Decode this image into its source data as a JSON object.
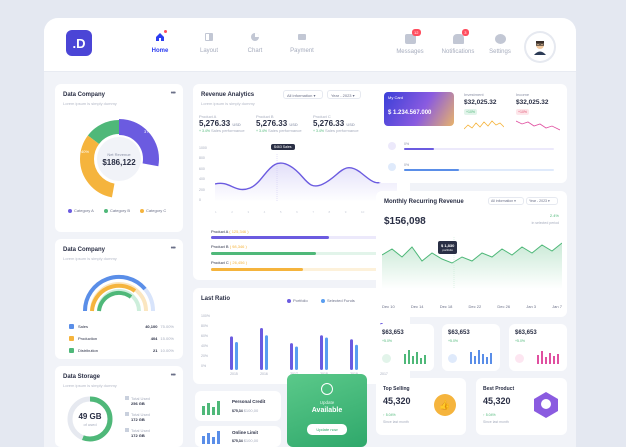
{
  "app": {
    "logo": ".D"
  },
  "nav": {
    "items": [
      {
        "label": "Home"
      },
      {
        "label": "Layout"
      },
      {
        "label": "Chart"
      },
      {
        "label": "Payment"
      }
    ],
    "right": [
      {
        "label": "Messages",
        "badge": "12"
      },
      {
        "label": "Notifications",
        "badge": "3"
      },
      {
        "label": "Settings"
      }
    ]
  },
  "data_company": {
    "title": "Data Company",
    "subtitle": "Lorem ipsum is simply dummy",
    "center_label": "Net Revenue",
    "center_value": "$186,122",
    "pct_a": "37.4%",
    "pct_b": "40%",
    "legend": [
      {
        "label": "Category A",
        "color": "#6b5be0"
      },
      {
        "label": "Category B",
        "color": "#4fb879"
      },
      {
        "label": "Category C",
        "color": "#f5b43d"
      }
    ]
  },
  "data_company2": {
    "title": "Data Company",
    "subtitle": "Lorem ipsum is simply dummy",
    "rows": [
      {
        "label": "Sales",
        "value": "40,100",
        "pct": "75.00%",
        "color": "#5a8ee8"
      },
      {
        "label": "Production",
        "value": "404",
        "pct": "15.00%",
        "color": "#f5b43d"
      },
      {
        "label": "Distribution",
        "value": "21",
        "pct": "10.00%",
        "color": "#4fb879"
      }
    ]
  },
  "data_storage": {
    "title": "Data Storage",
    "subtitle": "Lorem ipsum is simply dummy",
    "center_value": "49 GB",
    "center_label": "of used",
    "rows": [
      {
        "label": "Total Used",
        "value": "256 GB"
      },
      {
        "label": "Total Used",
        "value": "172 GB"
      },
      {
        "label": "Total Used",
        "value": "172 GB"
      }
    ]
  },
  "revenue": {
    "title": "Revenue Analytics",
    "subtitle": "Lorem ipsum is simply dummy",
    "filter": "All information",
    "period": "Year - 2023",
    "products": [
      {
        "label": "Product A",
        "value": "5,276.33",
        "unit": "USD",
        "change": "+ 3.4%",
        "note": "Sales performance"
      },
      {
        "label": "Product B",
        "value": "5,276.33",
        "unit": "USD",
        "change": "+ 3.4%",
        "note": "Sales performance"
      },
      {
        "label": "Product C",
        "value": "5,276.33",
        "unit": "USD",
        "change": "+ 3.4%",
        "note": "Sales performance"
      }
    ],
    "tooltip": "$463 Sales",
    "yticks": [
      "1000",
      "800",
      "600",
      "400",
      "200",
      "0"
    ],
    "bars": [
      {
        "label": "Product A",
        "value": "( 125,346 )",
        "pct": 0.8,
        "color": "#6b5be0"
      },
      {
        "label": "Product B",
        "value": "( 98,346 )",
        "pct": 0.7,
        "color": "#4fb879"
      },
      {
        "label": "Product C",
        "value": "( 26,456 )",
        "pct": 0.6,
        "color": "#f5b43d"
      }
    ]
  },
  "last_ratio": {
    "title": "Last Ratio",
    "legend": [
      {
        "label": "Portfolio",
        "color": "#6b5be0"
      },
      {
        "label": "Selected Funds",
        "color": "#5a9ef0"
      }
    ],
    "yticks": [
      "100%",
      "80%",
      "60%",
      "40%",
      "20%",
      "0%"
    ],
    "years": [
      "2015",
      "2016",
      "2017",
      "2018",
      "2019",
      "2017"
    ],
    "portfolio": [
      60,
      75,
      48,
      62,
      55,
      84
    ],
    "funds": [
      50,
      62,
      42,
      58,
      45,
      70
    ]
  },
  "credit": [
    {
      "label": "Personal Credit",
      "value": "$75,34",
      "sub": "$100,00"
    },
    {
      "label": "Online Limit",
      "value": "$75,34",
      "sub": "$100,00"
    }
  ],
  "update": {
    "line1": "Update",
    "line2": "Available",
    "button": "Update now"
  },
  "card_widget": {
    "card_label": "My Card",
    "card_value": "$ 1.234.567.000",
    "investment_label": "Investment",
    "investment_value": "$32,025.32",
    "investment_change": "+10%",
    "income_label": "Income",
    "income_value": "$32,025.32",
    "income_change": "+10%",
    "progress": [
      {
        "pct": "0%",
        "pct2": "0%",
        "pct3": "0%"
      },
      {
        "pct": "0%",
        "pct2": "0%",
        "pct3": "0%"
      }
    ]
  },
  "mrr": {
    "title": "Monthly Recurring Revenue",
    "filter": "All information",
    "period": "Year - 2023",
    "value": "$156,098",
    "change": "2.4%",
    "change_note": "in selected period",
    "tooltip_value": "$ 1,830",
    "tooltip_label": "portfolio",
    "dates": [
      "Dec 10",
      "Dec 14",
      "Dec 18",
      "Dec 22",
      "Dec 26",
      "Jan 3",
      "Jan 7"
    ]
  },
  "mini": [
    {
      "value": "$63,653",
      "change": "+5.0%",
      "color": "#4fb879"
    },
    {
      "value": "$63,653",
      "change": "+5.0%",
      "color": "#5a8ee8"
    },
    {
      "value": "$63,653",
      "change": "+5.0%",
      "color": "#e04fa0"
    }
  ],
  "top_selling": {
    "title": "Top Selling",
    "value": "45,320",
    "change": "5.04%",
    "note": "Since last month"
  },
  "best_product": {
    "title": "Best Product",
    "value": "45,320",
    "change": "5.04%",
    "note": "Since last month"
  }
}
